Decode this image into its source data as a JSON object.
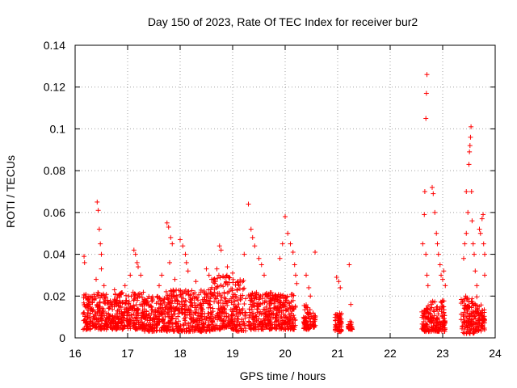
{
  "chart_data": {
    "type": "scatter",
    "title": "Day 150 of 2023, Rate Of TEC Index for receiver bur2",
    "xlabel": "GPS time / hours",
    "ylabel": "ROTI / TECUs",
    "xlim": [
      16,
      24
    ],
    "ylim": [
      0,
      0.14
    ],
    "xticks": [
      "16",
      "17",
      "18",
      "19",
      "20",
      "21",
      "22",
      "23",
      "24"
    ],
    "yticks": [
      "0",
      "0.02",
      "0.04",
      "0.06",
      "0.08",
      "0.1",
      "0.12",
      "0.14"
    ],
    "grid": true,
    "marker": "+",
    "color": "#ff0000",
    "dense_bands": [
      [
        16.15,
        16.45,
        0.004,
        0.022
      ],
      [
        16.45,
        16.8,
        0.004,
        0.021
      ],
      [
        16.8,
        17.3,
        0.004,
        0.022
      ],
      [
        17.3,
        17.7,
        0.003,
        0.02
      ],
      [
        17.7,
        18.2,
        0.003,
        0.023
      ],
      [
        18.2,
        18.6,
        0.003,
        0.024
      ],
      [
        18.6,
        19.0,
        0.004,
        0.03
      ],
      [
        19.0,
        19.25,
        0.003,
        0.028
      ],
      [
        19.3,
        19.75,
        0.004,
        0.022
      ],
      [
        19.75,
        20.2,
        0.004,
        0.021
      ],
      [
        20.35,
        20.5,
        0.004,
        0.016
      ],
      [
        20.52,
        20.58,
        0.005,
        0.012
      ],
      [
        20.95,
        21.08,
        0.003,
        0.012
      ],
      [
        21.2,
        21.28,
        0.004,
        0.008
      ],
      [
        22.6,
        22.75,
        0.003,
        0.016
      ],
      [
        22.75,
        23.05,
        0.003,
        0.018
      ],
      [
        23.35,
        23.65,
        0.002,
        0.02
      ],
      [
        23.65,
        23.8,
        0.003,
        0.016
      ]
    ],
    "sparse_points": [
      [
        16.17,
        0.039
      ],
      [
        16.18,
        0.036
      ],
      [
        16.4,
        0.028
      ],
      [
        16.42,
        0.065
      ],
      [
        16.44,
        0.061
      ],
      [
        16.46,
        0.052
      ],
      [
        16.48,
        0.045
      ],
      [
        16.5,
        0.04
      ],
      [
        16.5,
        0.033
      ],
      [
        16.55,
        0.025
      ],
      [
        16.75,
        0.023
      ],
      [
        16.95,
        0.025
      ],
      [
        17.05,
        0.03
      ],
      [
        17.12,
        0.042
      ],
      [
        17.15,
        0.04
      ],
      [
        17.18,
        0.036
      ],
      [
        17.2,
        0.034
      ],
      [
        17.25,
        0.03
      ],
      [
        17.6,
        0.025
      ],
      [
        17.65,
        0.03
      ],
      [
        17.75,
        0.055
      ],
      [
        17.78,
        0.053
      ],
      [
        17.82,
        0.048
      ],
      [
        17.85,
        0.045
      ],
      [
        17.8,
        0.036
      ],
      [
        17.9,
        0.028
      ],
      [
        18.0,
        0.047
      ],
      [
        18.05,
        0.044
      ],
      [
        18.1,
        0.04
      ],
      [
        18.12,
        0.036
      ],
      [
        18.15,
        0.032
      ],
      [
        18.3,
        0.027
      ],
      [
        18.5,
        0.033
      ],
      [
        18.55,
        0.03
      ],
      [
        18.6,
        0.028
      ],
      [
        18.7,
        0.033
      ],
      [
        18.75,
        0.044
      ],
      [
        18.78,
        0.042
      ],
      [
        18.9,
        0.034
      ],
      [
        19.0,
        0.031
      ],
      [
        19.1,
        0.027
      ],
      [
        19.22,
        0.04
      ],
      [
        19.3,
        0.064
      ],
      [
        19.35,
        0.052
      ],
      [
        19.38,
        0.048
      ],
      [
        19.42,
        0.044
      ],
      [
        19.5,
        0.038
      ],
      [
        19.55,
        0.035
      ],
      [
        19.6,
        0.03
      ],
      [
        19.9,
        0.038
      ],
      [
        19.95,
        0.045
      ],
      [
        20.0,
        0.058
      ],
      [
        20.05,
        0.05
      ],
      [
        20.1,
        0.045
      ],
      [
        20.15,
        0.041
      ],
      [
        20.18,
        0.035
      ],
      [
        20.2,
        0.03
      ],
      [
        20.22,
        0.026
      ],
      [
        20.4,
        0.03
      ],
      [
        20.45,
        0.024
      ],
      [
        20.48,
        0.02
      ],
      [
        20.57,
        0.041
      ],
      [
        20.98,
        0.029
      ],
      [
        21.02,
        0.027
      ],
      [
        21.05,
        0.024
      ],
      [
        21.22,
        0.035
      ],
      [
        21.25,
        0.016
      ],
      [
        22.62,
        0.045
      ],
      [
        22.65,
        0.059
      ],
      [
        22.66,
        0.07
      ],
      [
        22.68,
        0.105
      ],
      [
        22.69,
        0.117
      ],
      [
        22.7,
        0.126
      ],
      [
        22.68,
        0.04
      ],
      [
        22.7,
        0.03
      ],
      [
        22.72,
        0.025
      ],
      [
        22.8,
        0.072
      ],
      [
        22.82,
        0.069
      ],
      [
        22.85,
        0.06
      ],
      [
        22.88,
        0.05
      ],
      [
        22.9,
        0.045
      ],
      [
        22.92,
        0.04
      ],
      [
        22.95,
        0.035
      ],
      [
        22.97,
        0.03
      ],
      [
        23.0,
        0.028
      ],
      [
        23.02,
        0.032
      ],
      [
        23.05,
        0.025
      ],
      [
        23.4,
        0.038
      ],
      [
        23.42,
        0.045
      ],
      [
        23.45,
        0.05
      ],
      [
        23.45,
        0.07
      ],
      [
        23.48,
        0.06
      ],
      [
        23.5,
        0.083
      ],
      [
        23.51,
        0.089
      ],
      [
        23.52,
        0.092
      ],
      [
        23.53,
        0.096
      ],
      [
        23.54,
        0.101
      ],
      [
        23.55,
        0.07
      ],
      [
        23.56,
        0.056
      ],
      [
        23.58,
        0.045
      ],
      [
        23.6,
        0.04
      ],
      [
        23.62,
        0.032
      ],
      [
        23.65,
        0.025
      ],
      [
        23.7,
        0.052
      ],
      [
        23.72,
        0.05
      ],
      [
        23.75,
        0.057
      ],
      [
        23.77,
        0.059
      ],
      [
        23.78,
        0.045
      ],
      [
        23.8,
        0.04
      ],
      [
        23.8,
        0.03
      ]
    ]
  }
}
